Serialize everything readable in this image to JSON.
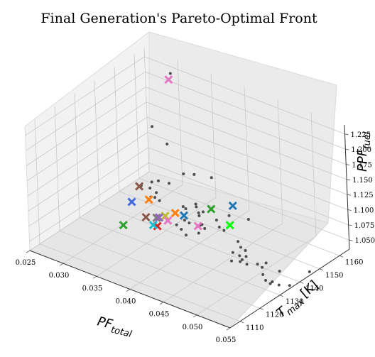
{
  "chart_data": {
    "type": "scatter",
    "projection": "3d",
    "title": "Final Generation's Pareto-Optimal Front",
    "xlabel": {
      "main": "PF",
      "subscript": "total"
    },
    "ylabel": {
      "main": "T",
      "subscript": "max",
      "unit": "[K]"
    },
    "zlabel": {
      "main": "PPF",
      "subscript": "fuel"
    },
    "x_ticks": [
      "0.025",
      "0.030",
      "0.035",
      "0.040",
      "0.045",
      "0.050",
      "0.055"
    ],
    "y_ticks": [
      "1110",
      "1120",
      "1130",
      "1140",
      "1150",
      "1160"
    ],
    "z_ticks": [
      "1.050",
      "1.075",
      "1.100",
      "1.125",
      "1.150",
      "1.175",
      "1.200",
      "1.225"
    ],
    "xlim": [
      0.025,
      0.055
    ],
    "ylim": [
      1105,
      1165
    ],
    "zlim": [
      1.035,
      1.24
    ],
    "grid": true,
    "background_points_color": "#333333",
    "background_points": [
      [
        0.031,
        1158,
        1.238
      ],
      [
        0.031,
        1148,
        1.172
      ],
      [
        0.031,
        1155,
        1.128
      ],
      [
        0.03,
        1150,
        1.072
      ],
      [
        0.031,
        1150,
        1.078
      ],
      [
        0.032,
        1152,
        1.074
      ],
      [
        0.029,
        1148,
        1.066
      ],
      [
        0.03,
        1149,
        1.064
      ],
      [
        0.033,
        1156,
        1.085
      ],
      [
        0.034,
        1158,
        1.084
      ],
      [
        0.036,
        1160,
        1.083
      ],
      [
        0.03,
        1152,
        1.05
      ],
      [
        0.031,
        1148,
        1.055
      ],
      [
        0.031,
        1146,
        1.06
      ],
      [
        0.032,
        1147,
        1.056
      ],
      [
        0.034,
        1152,
        1.044
      ],
      [
        0.035,
        1155,
        1.046
      ],
      [
        0.036,
        1153,
        1.04
      ],
      [
        0.037,
        1152,
        1.048
      ],
      [
        0.035,
        1150,
        1.049
      ],
      [
        0.036,
        1152,
        1.052
      ],
      [
        0.037,
        1150,
        1.046
      ],
      [
        0.039,
        1152,
        1.043
      ],
      [
        0.04,
        1155,
        1.048
      ],
      [
        0.042,
        1158,
        1.044
      ],
      [
        0.036,
        1146,
        1.043
      ],
      [
        0.037,
        1145,
        1.045
      ],
      [
        0.038,
        1147,
        1.041
      ],
      [
        0.038,
        1148,
        1.04
      ],
      [
        0.039,
        1146,
        1.042
      ],
      [
        0.04,
        1150,
        1.04
      ],
      [
        0.041,
        1149,
        1.041
      ],
      [
        0.036,
        1142,
        1.044
      ],
      [
        0.037,
        1141,
        1.043
      ],
      [
        0.039,
        1143,
        1.041
      ],
      [
        0.038,
        1140,
        1.04
      ],
      [
        0.044,
        1146,
        1.042
      ],
      [
        0.045,
        1144,
        1.041
      ],
      [
        0.046,
        1143,
        1.042
      ],
      [
        0.045,
        1140,
        1.041
      ],
      [
        0.046,
        1140,
        1.04
      ],
      [
        0.047,
        1138,
        1.042
      ],
      [
        0.047,
        1137,
        1.041
      ],
      [
        0.046,
        1136,
        1.04
      ],
      [
        0.048,
        1137,
        1.041
      ],
      [
        0.049,
        1139,
        1.041
      ],
      [
        0.05,
        1138,
        1.042
      ],
      [
        0.05,
        1140,
        1.045
      ],
      [
        0.052,
        1140,
        1.04
      ],
      [
        0.051,
        1135,
        1.041
      ],
      [
        0.052,
        1133,
        1.04
      ],
      [
        0.053,
        1132,
        1.041
      ],
      [
        0.053,
        1133,
        1.042
      ],
      [
        0.054,
        1133,
        1.041
      ],
      [
        0.055,
        1135,
        1.04
      ],
      [
        0.055,
        1145,
        1.041
      ],
      [
        0.047,
        1140,
        1.043
      ]
    ],
    "highlighted_points": [
      {
        "color": "#e377c2",
        "point": [
          0.031,
          1157,
          1.23
        ]
      },
      {
        "color": "#8c564b",
        "point": [
          0.029,
          1147,
          1.067
        ]
      },
      {
        "color": "#4169e1",
        "point": [
          0.029,
          1143,
          1.05
        ]
      },
      {
        "color": "#ff7f0e",
        "point": [
          0.031,
          1145,
          1.058
        ]
      },
      {
        "color": "#2ca02c",
        "point": [
          0.037,
          1156,
          1.044
        ]
      },
      {
        "color": "#1f77b4",
        "point": [
          0.04,
          1157,
          1.06
        ]
      },
      {
        "color": "#ff7f0e",
        "point": [
          0.034,
          1148,
          1.042
        ]
      },
      {
        "color": "#1f77b4",
        "point": [
          0.035,
          1149,
          1.04
        ]
      },
      {
        "color": "#8c564b",
        "point": [
          0.032,
          1140,
          1.044
        ]
      },
      {
        "color": "#7f7f7f",
        "point": [
          0.033,
          1142,
          1.043
        ]
      },
      {
        "color": "#bcbd22",
        "point": [
          0.034,
          1143,
          1.048
        ]
      },
      {
        "color": "#9467bd",
        "point": [
          0.034,
          1140,
          1.052
        ]
      },
      {
        "color": "#e377c2",
        "point": [
          0.035,
          1141,
          1.049
        ]
      },
      {
        "color": "#d62728",
        "point": [
          0.034,
          1139,
          1.04
        ]
      },
      {
        "color": "#17becf",
        "point": [
          0.034,
          1137,
          1.046
        ]
      },
      {
        "color": "#00ff00",
        "point": [
          0.041,
          1152,
          1.043
        ]
      },
      {
        "color": "#e377c2",
        "point": [
          0.038,
          1146,
          1.042
        ]
      },
      {
        "color": "#2ca02c",
        "point": [
          0.031,
          1132,
          1.044
        ]
      }
    ]
  }
}
